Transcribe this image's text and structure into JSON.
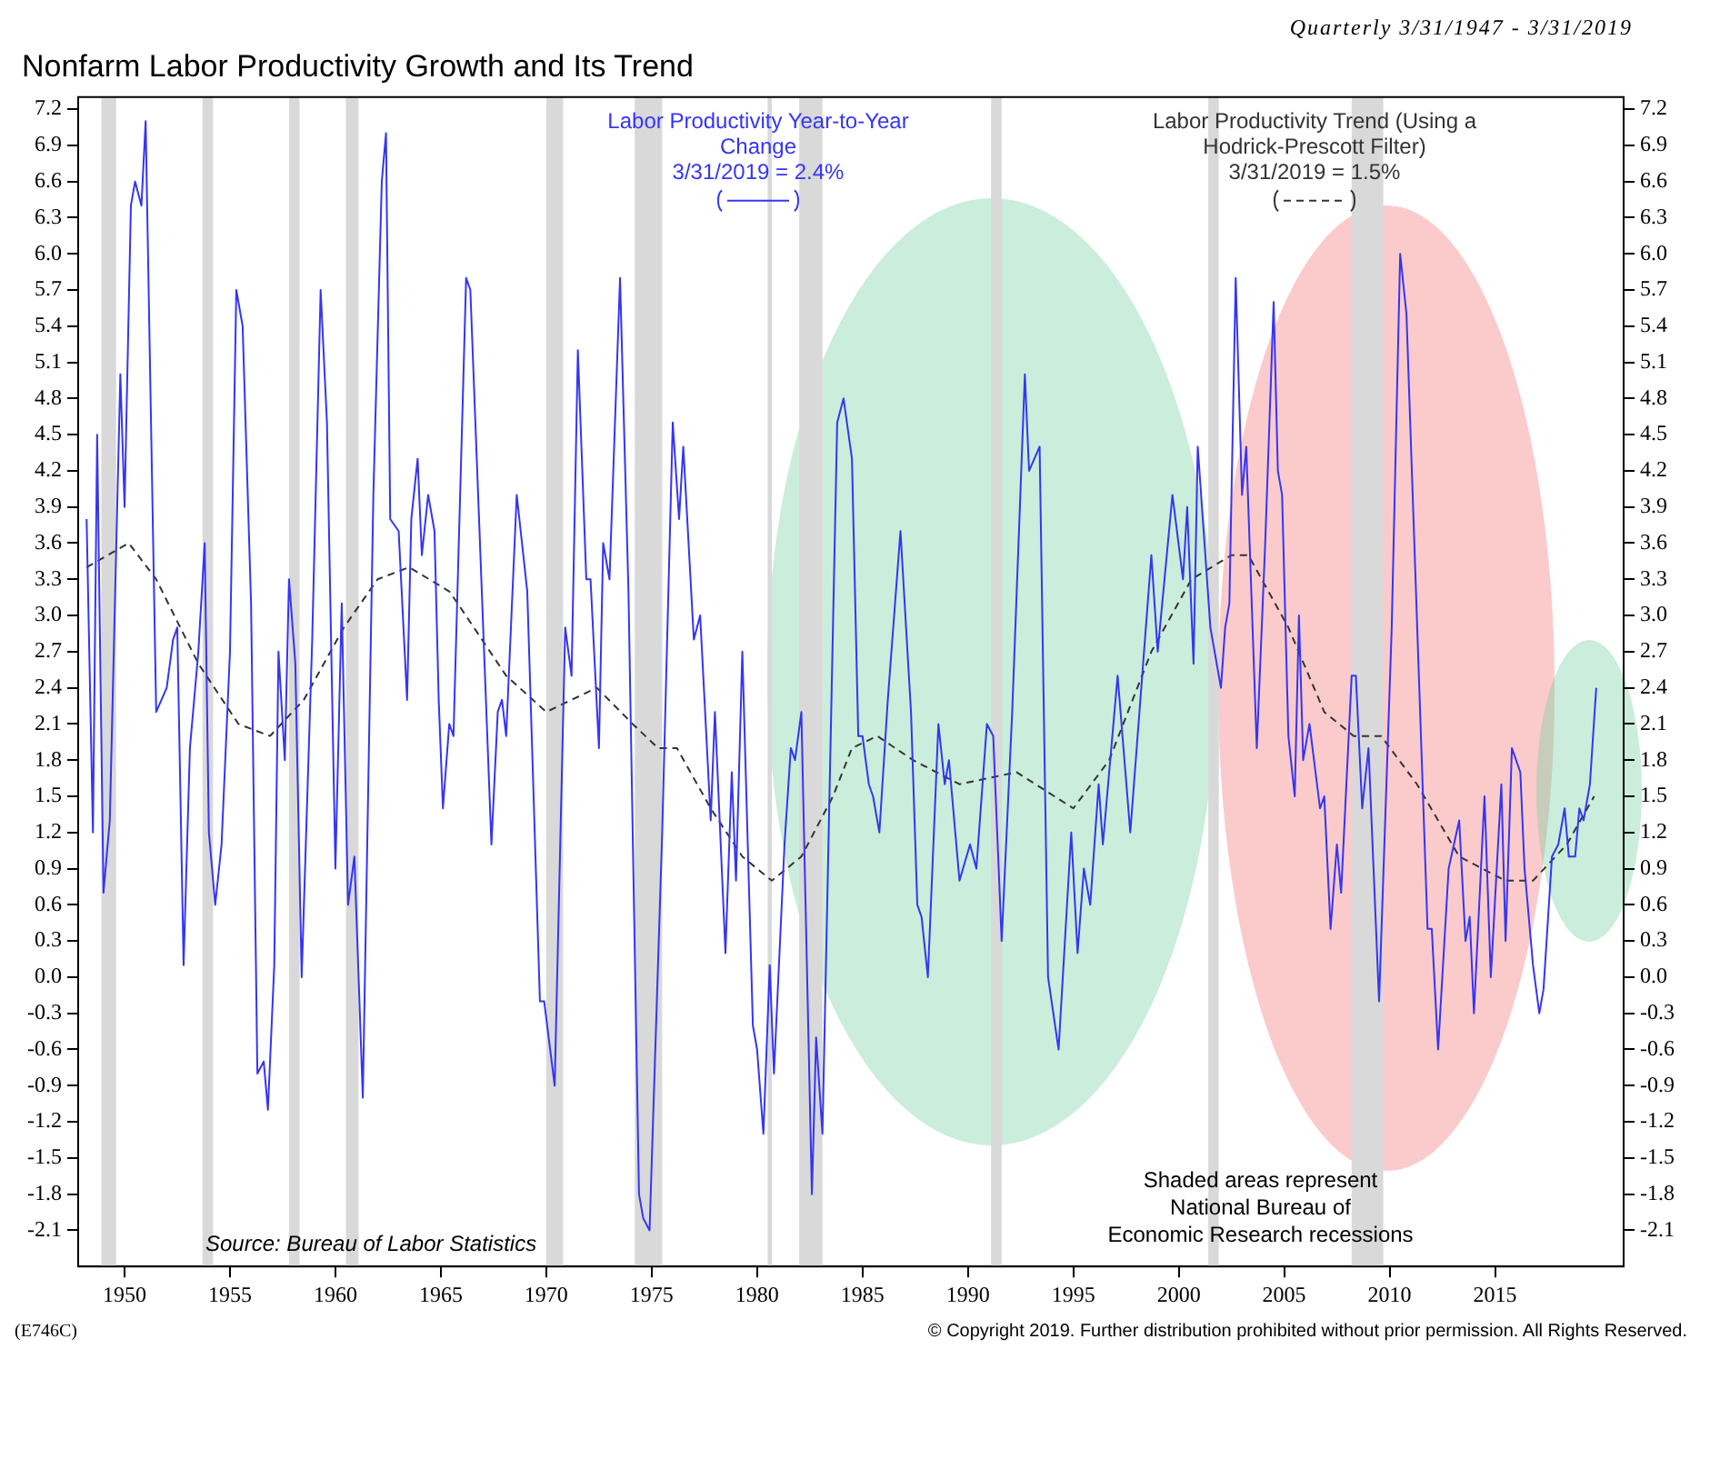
{
  "chart_data": {
    "type": "line",
    "title": "Nonfarm Labor Productivity Growth and Its Trend",
    "subtitle": "Quarterly 3/31/1947 - 3/31/2019",
    "xlim": [
      1947.8,
      2021.1
    ],
    "xticks": [
      1950,
      1955,
      1960,
      1965,
      1970,
      1975,
      1980,
      1985,
      1990,
      1995,
      2000,
      2005,
      2010,
      2015
    ],
    "ylim": [
      -2.4,
      7.3
    ],
    "yticks": [
      -2.1,
      -1.8,
      -1.5,
      -1.2,
      -0.9,
      -0.6,
      -0.3,
      {
        "value": 0,
        "label": "0.0"
      },
      0.3,
      0.6,
      0.9,
      1.2,
      1.5,
      1.8,
      2.1,
      2.4,
      2.7,
      {
        "value": 3,
        "label": "3.0"
      },
      3.3,
      3.6,
      3.9,
      4.2,
      4.5,
      4.8,
      5.1,
      5.4,
      5.7,
      {
        "value": 6,
        "label": "6.0"
      },
      6.3,
      6.6,
      6.9,
      7.2
    ],
    "y2lim": [
      -2.4,
      7.3
    ],
    "y2ticks": [
      -2.1,
      -1.8,
      -1.5,
      -1.2,
      -0.9,
      -0.6,
      -0.3,
      {
        "value": 0,
        "label": "0.0"
      },
      0.3,
      0.6,
      0.9,
      1.2,
      1.5,
      1.8,
      2.1,
      2.4,
      2.7,
      {
        "value": 3,
        "label": "3.0"
      },
      3.3,
      3.6,
      3.9,
      4.2,
      4.5,
      4.8,
      5.1,
      5.4,
      5.7,
      {
        "value": 6,
        "label": "6.0"
      },
      6.3,
      6.6,
      6.9,
      7.2
    ],
    "grid": false,
    "legend": "top",
    "marker": "none",
    "line_style": "solid",
    "series": [
      {
        "name": "Labor Productivity Year-to-Year Change",
        "color": "#3535f5",
        "x": [
          1948.2,
          1948.5,
          1948.7,
          1949.0,
          1949.3,
          1949.8,
          1950.0,
          1950.3,
          1950.5,
          1950.8,
          1951.0,
          1951.5,
          1952.0,
          1952.3,
          1952.5,
          1952.8,
          1953.1,
          1953.5,
          1953.8,
          1954.0,
          1954.3,
          1954.6,
          1955.0,
          1955.3,
          1955.6,
          1956.0,
          1956.3,
          1956.6,
          1956.8,
          1957.1,
          1957.3,
          1957.6,
          1957.8,
          1958.1,
          1958.4,
          1958.9,
          1959.3,
          1959.6,
          1960.0,
          1960.3,
          1960.6,
          1960.9,
          1961.3,
          1961.8,
          1962.2,
          1962.4,
          1962.6,
          1963.0,
          1963.4,
          1963.6,
          1963.9,
          1964.1,
          1964.4,
          1964.7,
          1964.9,
          1965.1,
          1965.4,
          1965.6,
          1966.2,
          1966.4,
          1967.4,
          1967.7,
          1967.9,
          1968.1,
          1968.6,
          1969.1,
          1969.7,
          1969.9,
          1970.4,
          1970.9,
          1971.2,
          1971.5,
          1971.9,
          1972.1,
          1972.5,
          1972.7,
          1973.0,
          1973.5,
          1973.9,
          1974.4,
          1974.6,
          1974.9,
          1975.5,
          1976.0,
          1976.3,
          1976.5,
          1977.0,
          1977.3,
          1977.8,
          1978.0,
          1978.5,
          1978.8,
          1979.0,
          1979.3,
          1979.8,
          1980.0,
          1980.3,
          1980.6,
          1980.8,
          1981.3,
          1981.6,
          1981.8,
          1982.1,
          1982.6,
          1982.8,
          1983.1,
          1983.8,
          1984.1,
          1984.5,
          1984.8,
          1985.0,
          1985.3,
          1985.5,
          1985.8,
          1986.2,
          1986.8,
          1987.3,
          1987.6,
          1987.8,
          1988.1,
          1988.6,
          1988.9,
          1989.1,
          1989.6,
          1990.1,
          1990.4,
          1990.9,
          1991.2,
          1991.6,
          1992.1,
          1992.7,
          1992.9,
          1993.4,
          1993.8,
          1994.3,
          1994.9,
          1995.2,
          1995.5,
          1995.8,
          1996.2,
          1996.4,
          1997.1,
          1997.7,
          1998.7,
          1999.0,
          1999.7,
          2000.2,
          2000.4,
          2000.7,
          2000.9,
          2001.5,
          2002.0,
          2002.2,
          2002.4,
          2002.7,
          2003.0,
          2003.2,
          2003.7,
          2004.1,
          2004.5,
          2004.7,
          2004.9,
          2005.2,
          2005.5,
          2005.7,
          2005.9,
          2006.2,
          2006.7,
          2006.9,
          2007.2,
          2007.5,
          2007.7,
          2008.2,
          2008.4,
          2008.7,
          2009.0,
          2009.5,
          2010.1,
          2010.5,
          2010.8,
          2011.8,
          2012.0,
          2012.3,
          2012.8,
          2013.3,
          2013.6,
          2013.8,
          2014.0,
          2014.5,
          2014.8,
          2015.3,
          2015.5,
          2015.8,
          2016.2,
          2016.4,
          2016.8,
          2017.1,
          2017.3,
          2017.7,
          2018.0,
          2018.3,
          2018.5,
          2018.8,
          2019.0,
          2019.2,
          2019.5,
          2019.8
        ],
        "values": [
          3.8,
          1.2,
          4.5,
          0.7,
          1.3,
          5.0,
          3.9,
          6.4,
          6.6,
          6.4,
          7.1,
          2.2,
          2.4,
          2.8,
          2.9,
          0.1,
          1.9,
          2.7,
          3.6,
          1.2,
          0.6,
          1.1,
          2.7,
          5.7,
          5.4,
          3.1,
          -0.8,
          -0.7,
          -1.1,
          0.1,
          2.7,
          1.8,
          3.3,
          2.6,
          0.0,
          2.8,
          5.7,
          4.6,
          0.9,
          3.1,
          0.6,
          1.0,
          -1.0,
          4.0,
          6.6,
          7.0,
          3.8,
          3.7,
          2.3,
          3.8,
          4.3,
          3.5,
          4.0,
          3.7,
          2.3,
          1.4,
          2.1,
          2.0,
          5.8,
          5.7,
          1.1,
          2.2,
          2.3,
          2.0,
          4.0,
          3.2,
          -0.2,
          -0.2,
          -0.9,
          2.9,
          2.5,
          5.2,
          3.3,
          3.3,
          1.9,
          3.6,
          3.3,
          5.8,
          3.2,
          -1.8,
          -2.0,
          -2.1,
          1.2,
          4.6,
          3.8,
          4.4,
          2.8,
          3.0,
          1.3,
          2.2,
          0.2,
          1.7,
          0.8,
          2.7,
          -0.4,
          -0.6,
          -1.3,
          0.1,
          -0.8,
          1.1,
          1.9,
          1.8,
          2.2,
          -1.8,
          -0.5,
          -1.3,
          4.6,
          4.8,
          4.3,
          2.0,
          2.0,
          1.6,
          1.5,
          1.2,
          2.3,
          3.7,
          2.2,
          0.6,
          0.5,
          0.0,
          2.1,
          1.6,
          1.8,
          0.8,
          1.1,
          0.9,
          2.1,
          2.0,
          0.3,
          2.2,
          5.0,
          4.2,
          4.4,
          0.0,
          -0.6,
          1.2,
          0.2,
          0.9,
          0.6,
          1.6,
          1.1,
          2.5,
          1.2,
          3.5,
          2.7,
          4.0,
          3.3,
          3.9,
          2.6,
          4.4,
          2.9,
          2.4,
          2.9,
          3.1,
          5.8,
          4.0,
          4.4,
          1.9,
          3.6,
          5.6,
          4.2,
          4.0,
          2.0,
          1.5,
          3.0,
          1.8,
          2.1,
          1.4,
          1.5,
          0.4,
          1.1,
          0.7,
          2.5,
          2.5,
          1.4,
          1.9,
          -0.2,
          2.9,
          6.0,
          5.5,
          0.4,
          0.4,
          -0.6,
          0.9,
          1.3,
          0.3,
          0.5,
          -0.3,
          1.5,
          0.0,
          1.6,
          0.3,
          1.9,
          1.7,
          0.9,
          0.1,
          -0.3,
          -0.1,
          1.0,
          1.1,
          1.4,
          1.0,
          1.0,
          1.4,
          1.3,
          1.6,
          2.4
        ]
      },
      {
        "name": "Labor Productivity Trend (Using a Hodrick-Prescott Filter)",
        "color": "#333333",
        "line_style": "dashed",
        "x": [
          1948.2,
          1950.2,
          1951.5,
          1953.5,
          1955.4,
          1956.9,
          1958.5,
          1960.4,
          1962.0,
          1963.5,
          1965.4,
          1965.8,
          1968.1,
          1970.0,
          1972.4,
          1974.1,
          1975.3,
          1976.2,
          1977.8,
          1979.3,
          1980.7,
          1982.1,
          1983.6,
          1984.5,
          1985.7,
          1987.4,
          1989.6,
          1992.3,
          1995.0,
          1996.7,
          1998.7,
          2000.6,
          2002.5,
          2003.3,
          2005.2,
          2006.9,
          2008.3,
          2009.6,
          2011.3,
          2013.3,
          2015.5,
          2016.8,
          2018.4,
          2019.7
        ],
        "values": [
          3.4,
          3.6,
          3.3,
          2.6,
          2.1,
          2.0,
          2.3,
          2.9,
          3.3,
          3.4,
          3.2,
          3.1,
          2.5,
          2.2,
          2.4,
          2.1,
          1.9,
          1.9,
          1.4,
          1.0,
          0.8,
          1.0,
          1.5,
          1.9,
          2.0,
          1.8,
          1.6,
          1.7,
          1.4,
          1.8,
          2.7,
          3.3,
          3.5,
          3.5,
          2.9,
          2.2,
          2.0,
          2.0,
          1.6,
          1.0,
          0.8,
          0.8,
          1.1,
          1.5
        ]
      }
    ],
    "bands": [
      {
        "axis": "x",
        "from": 1948.9,
        "to": 1949.6,
        "color": "#d9d9d9"
      },
      {
        "axis": "x",
        "from": 1953.7,
        "to": 1954.2,
        "color": "#d9d9d9"
      },
      {
        "axis": "x",
        "from": 1957.8,
        "to": 1958.3,
        "color": "#d9d9d9"
      },
      {
        "axis": "x",
        "from": 1960.5,
        "to": 1961.1,
        "color": "#d9d9d9"
      },
      {
        "axis": "x",
        "from": 1970.0,
        "to": 1970.8,
        "color": "#d9d9d9"
      },
      {
        "axis": "x",
        "from": 1974.2,
        "to": 1975.5,
        "color": "#d9d9d9"
      },
      {
        "axis": "x",
        "from": 1980.5,
        "to": 1980.7,
        "color": "#d9d9d9"
      },
      {
        "axis": "x",
        "from": 1982.0,
        "to": 1983.1,
        "color": "#d9d9d9"
      },
      {
        "axis": "x",
        "from": 1991.1,
        "to": 1991.6,
        "color": "#d9d9d9"
      },
      {
        "axis": "x",
        "from": 2001.4,
        "to": 2001.9,
        "color": "#d9d9d9"
      },
      {
        "axis": "x",
        "from": 2008.2,
        "to": 2009.7,
        "color": "#d9d9d9"
      }
    ],
    "annotations": [
      "3/31/2019 = 2.4%",
      "3/31/2019 = 1.5%",
      "Source: Bureau of Labor Statistics",
      "Shaded areas represent\nNational Bureau of\nEconomic Research recessions",
      "(E746C)",
      "© Copyright 2019. Further distribution prohibited without prior permission. All Rights Reserved."
    ]
  }
}
